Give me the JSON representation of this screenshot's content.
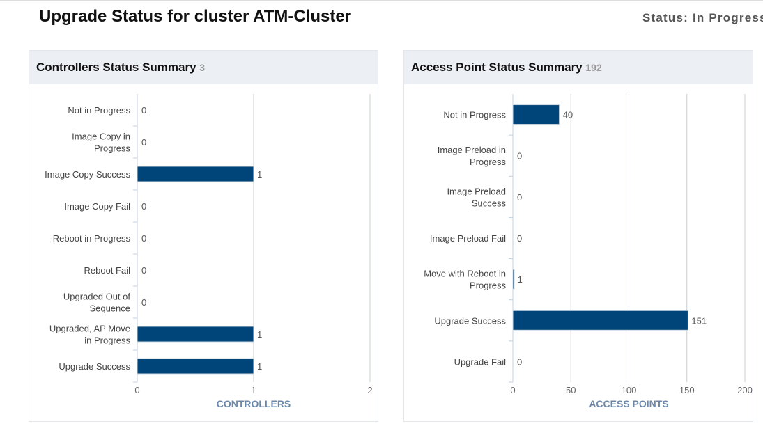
{
  "page": {
    "title": "Upgrade Status for cluster ATM-Cluster",
    "status": "Status: In Progress"
  },
  "colors": {
    "bar": "#00457a",
    "header_bg": "#eceff4",
    "axis_title": "#6b88aa"
  },
  "chart_data": [
    {
      "type": "bar",
      "orientation": "horizontal",
      "title": "Controllers Status Summary",
      "count": "3",
      "categories": [
        "Not in Progress",
        "Image Copy in Progress",
        "Image Copy Success",
        "Image Copy Fail",
        "Reboot in Progress",
        "Reboot Fail",
        "Upgraded Out of Sequence",
        "Upgraded, AP Move in Progress",
        "Upgrade Success"
      ],
      "category_lines": [
        [
          "Not in Progress"
        ],
        [
          "Image Copy in",
          "Progress"
        ],
        [
          "Image Copy Success"
        ],
        [
          "Image Copy Fail"
        ],
        [
          "Reboot in Progress"
        ],
        [
          "Reboot Fail"
        ],
        [
          "Upgraded Out of",
          "Sequence"
        ],
        [
          "Upgraded, AP Move",
          "in Progress"
        ],
        [
          "Upgrade Success"
        ]
      ],
      "values": [
        0,
        0,
        1,
        0,
        0,
        0,
        0,
        1,
        1
      ],
      "xlabel": "CONTROLLERS",
      "xlim": [
        0,
        2
      ],
      "xticks": [
        "0",
        "1",
        "2"
      ],
      "grid": true
    },
    {
      "type": "bar",
      "orientation": "horizontal",
      "title": "Access Point Status Summary",
      "count": "192",
      "categories": [
        "Not in Progress",
        "Image Preload in Progress",
        "Image Preload Success",
        "Image Preload Fail",
        "Move with Reboot in Progress",
        "Upgrade Success",
        "Upgrade Fail"
      ],
      "category_lines": [
        [
          "Not in Progress"
        ],
        [
          "Image Preload in",
          "Progress"
        ],
        [
          "Image Preload",
          "Success"
        ],
        [
          "Image Preload Fail"
        ],
        [
          "Move with Reboot in",
          "Progress"
        ],
        [
          "Upgrade Success"
        ],
        [
          "Upgrade Fail"
        ]
      ],
      "values": [
        40,
        0,
        0,
        0,
        1,
        151,
        0
      ],
      "xlabel": "ACCESS POINTS",
      "xlim": [
        0,
        200
      ],
      "xticks": [
        "0",
        "50",
        "100",
        "150",
        "200"
      ],
      "grid": true
    }
  ]
}
